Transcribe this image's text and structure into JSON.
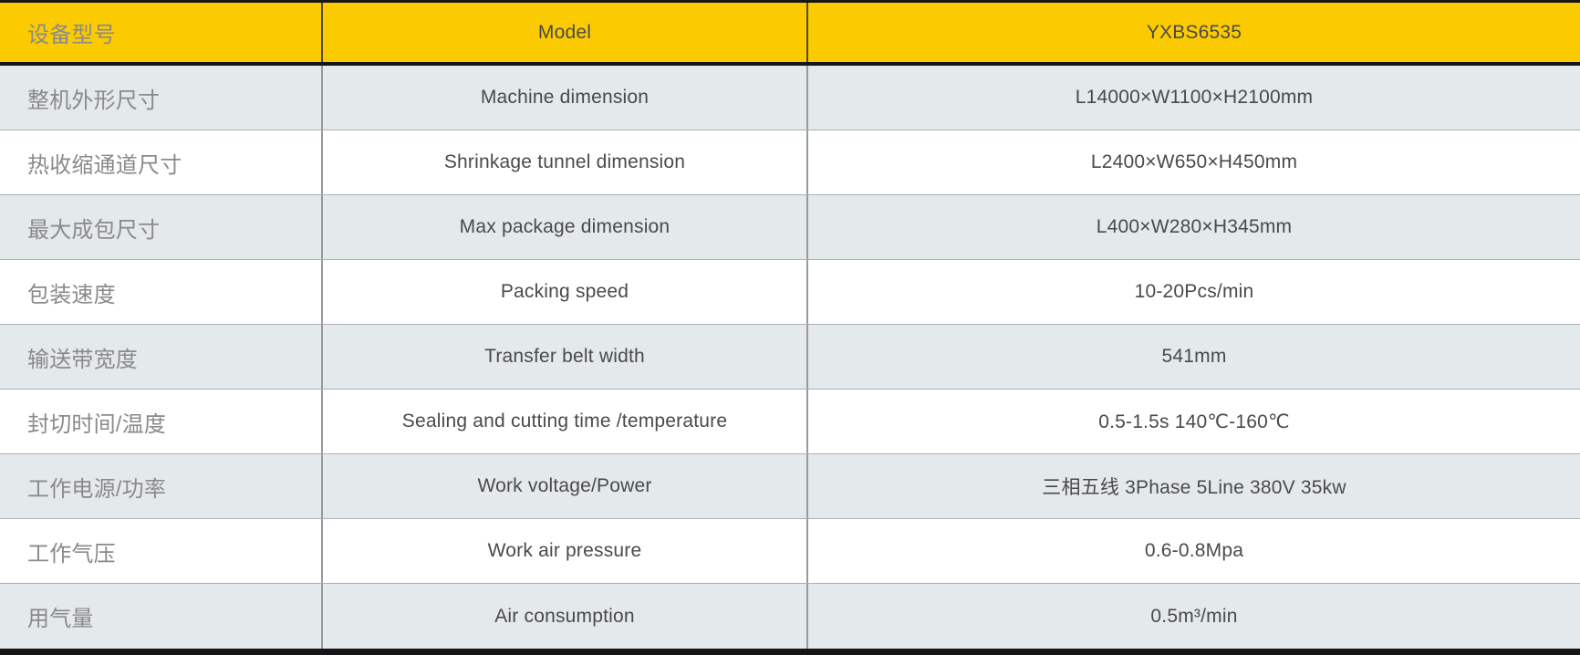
{
  "colors": {
    "header_bg": "#fbcb00",
    "alt_row_bg": "#e4e9ec",
    "frame_border": "#161616",
    "row_divider": "#abb0b3",
    "col_divider": "#97999b",
    "header_col_divider": "#4e4a33",
    "text_dark": "#4a4a4a",
    "text_gray": "#8a8a8a"
  },
  "table": {
    "header": {
      "cn": "设备型号",
      "en": "Model",
      "value": "YXBS6535"
    },
    "rows": [
      {
        "cn": "整机外形尺寸",
        "en": "Machine dimension",
        "value": "L14000×W1100×H2100mm"
      },
      {
        "cn": "热收缩通道尺寸",
        "en": "Shrinkage tunnel dimension",
        "value": "L2400×W650×H450mm"
      },
      {
        "cn": "最大成包尺寸",
        "en": "Max package dimension",
        "value": "L400×W280×H345mm"
      },
      {
        "cn": "包装速度",
        "en": "Packing speed",
        "value": "10-20Pcs/min"
      },
      {
        "cn": "输送带宽度",
        "en": "Transfer belt width",
        "value": "541mm"
      },
      {
        "cn": "封切时间/温度",
        "en": "Sealing and cutting time /temperature",
        "value": "0.5-1.5s 140℃-160℃"
      },
      {
        "cn": "工作电源/功率",
        "en": "Work voltage/Power",
        "value": "三相五线 3Phase 5Line 380V 35kw"
      },
      {
        "cn": "工作气压",
        "en": "Work air pressure",
        "value": "0.6-0.8Mpa"
      },
      {
        "cn": "用气量",
        "en": "Air consumption",
        "value": "0.5m³/min"
      }
    ]
  }
}
